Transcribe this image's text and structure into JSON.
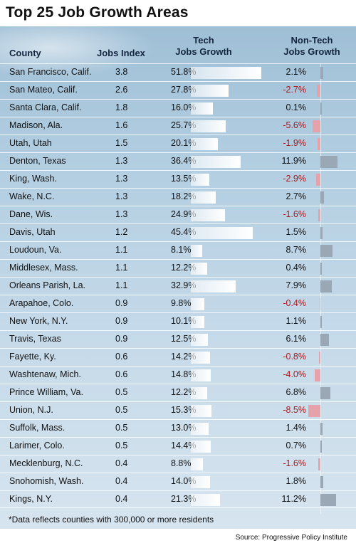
{
  "title": "Top 25 Job Growth Areas",
  "headers": {
    "county": "County",
    "jobs_index": "Jobs Index",
    "tech_line1": "Tech",
    "tech_line2": "Jobs Growth",
    "nontech_line1": "Non-Tech",
    "nontech_line2": "Jobs Growth"
  },
  "footnote": "*Data reflects counties with 300,000 or more residents",
  "source": "Source: Progressive Policy Institute",
  "colors": {
    "negative_text": "#a8191f",
    "negative_bar": "#e6a2ab",
    "positive_bar": "#9aa7b4",
    "tech_bar": "#ffffff"
  },
  "chart_data": {
    "type": "table",
    "columns": [
      "County",
      "Jobs Index",
      "Tech Jobs Growth",
      "Non-Tech Jobs Growth"
    ],
    "rows": [
      {
        "county": "San Francisco, Calif.",
        "index": "3.8",
        "tech": "51.8%",
        "tech_value": 51.8,
        "nontech": "2.1%",
        "nontech_value": 2.1
      },
      {
        "county": "San Mateo, Calif.",
        "index": "2.6",
        "tech": "27.8%",
        "tech_value": 27.8,
        "nontech": "-2.7%",
        "nontech_value": -2.7
      },
      {
        "county": "Santa Clara, Calif.",
        "index": "1.8",
        "tech": "16.0%",
        "tech_value": 16.0,
        "nontech": "0.1%",
        "nontech_value": 0.1
      },
      {
        "county": "Madison, Ala.",
        "index": "1.6",
        "tech": "25.7%",
        "tech_value": 25.7,
        "nontech": "-5.6%",
        "nontech_value": -5.6
      },
      {
        "county": "Utah, Utah",
        "index": "1.5",
        "tech": "20.1%",
        "tech_value": 20.1,
        "nontech": "-1.9%",
        "nontech_value": -1.9
      },
      {
        "county": "Denton, Texas",
        "index": "1.3",
        "tech": "36.4%",
        "tech_value": 36.4,
        "nontech": "11.9%",
        "nontech_value": 11.9
      },
      {
        "county": "King, Wash.",
        "index": "1.3",
        "tech": "13.5%",
        "tech_value": 13.5,
        "nontech": "-2.9%",
        "nontech_value": -2.9
      },
      {
        "county": "Wake, N.C.",
        "index": "1.3",
        "tech": "18.2%",
        "tech_value": 18.2,
        "nontech": "2.7%",
        "nontech_value": 2.7
      },
      {
        "county": "Dane, Wis.",
        "index": "1.3",
        "tech": "24.9%",
        "tech_value": 24.9,
        "nontech": "-1.6%",
        "nontech_value": -1.6
      },
      {
        "county": "Davis, Utah",
        "index": "1.2",
        "tech": "45.4%",
        "tech_value": 45.4,
        "nontech": "1.5%",
        "nontech_value": 1.5
      },
      {
        "county": "Loudoun, Va.",
        "index": "1.1",
        "tech": "8.1%",
        "tech_value": 8.1,
        "nontech": "8.7%",
        "nontech_value": 8.7
      },
      {
        "county": "Middlesex, Mass.",
        "index": "1.1",
        "tech": "12.2%",
        "tech_value": 12.2,
        "nontech": "0.4%",
        "nontech_value": 0.4
      },
      {
        "county": "Orleans Parish, La.",
        "index": "1.1",
        "tech": "32.9%",
        "tech_value": 32.9,
        "nontech": "7.9%",
        "nontech_value": 7.9
      },
      {
        "county": "Arapahoe, Colo.",
        "index": "0.9",
        "tech": "9.8%",
        "tech_value": 9.8,
        "nontech": "-0.4%",
        "nontech_value": -0.4
      },
      {
        "county": "New York, N.Y.",
        "index": "0.9",
        "tech": "10.1%",
        "tech_value": 10.1,
        "nontech": "1.1%",
        "nontech_value": 1.1
      },
      {
        "county": "Travis, Texas",
        "index": "0.9",
        "tech": "12.5%",
        "tech_value": 12.5,
        "nontech": "6.1%",
        "nontech_value": 6.1
      },
      {
        "county": "Fayette, Ky.",
        "index": "0.6",
        "tech": "14.2%",
        "tech_value": 14.2,
        "nontech": "-0.8%",
        "nontech_value": -0.8
      },
      {
        "county": "Washtenaw, Mich.",
        "index": "0.6",
        "tech": "14.8%",
        "tech_value": 14.8,
        "nontech": "-4.0%",
        "nontech_value": -4.0
      },
      {
        "county": "Prince William, Va.",
        "index": "0.5",
        "tech": "12.2%",
        "tech_value": 12.2,
        "nontech": "6.8%",
        "nontech_value": 6.8
      },
      {
        "county": "Union, N.J.",
        "index": "0.5",
        "tech": "15.3%",
        "tech_value": 15.3,
        "nontech": "-8.5%",
        "nontech_value": -8.5
      },
      {
        "county": "Suffolk, Mass.",
        "index": "0.5",
        "tech": "13.0%",
        "tech_value": 13.0,
        "nontech": "1.4%",
        "nontech_value": 1.4
      },
      {
        "county": "Larimer, Colo.",
        "index": "0.5",
        "tech": "14.4%",
        "tech_value": 14.4,
        "nontech": "0.7%",
        "nontech_value": 0.7
      },
      {
        "county": "Mecklenburg, N.C.",
        "index": "0.4",
        "tech": "8.8%",
        "tech_value": 8.8,
        "nontech": "-1.6%",
        "nontech_value": -1.6
      },
      {
        "county": "Snohomish, Wash.",
        "index": "0.4",
        "tech": "14.0%",
        "tech_value": 14.0,
        "nontech": "1.8%",
        "nontech_value": 1.8
      },
      {
        "county": "Kings, N.Y.",
        "index": "0.4",
        "tech": "21.3%",
        "tech_value": 21.3,
        "nontech": "11.2%",
        "nontech_value": 11.2
      }
    ]
  }
}
